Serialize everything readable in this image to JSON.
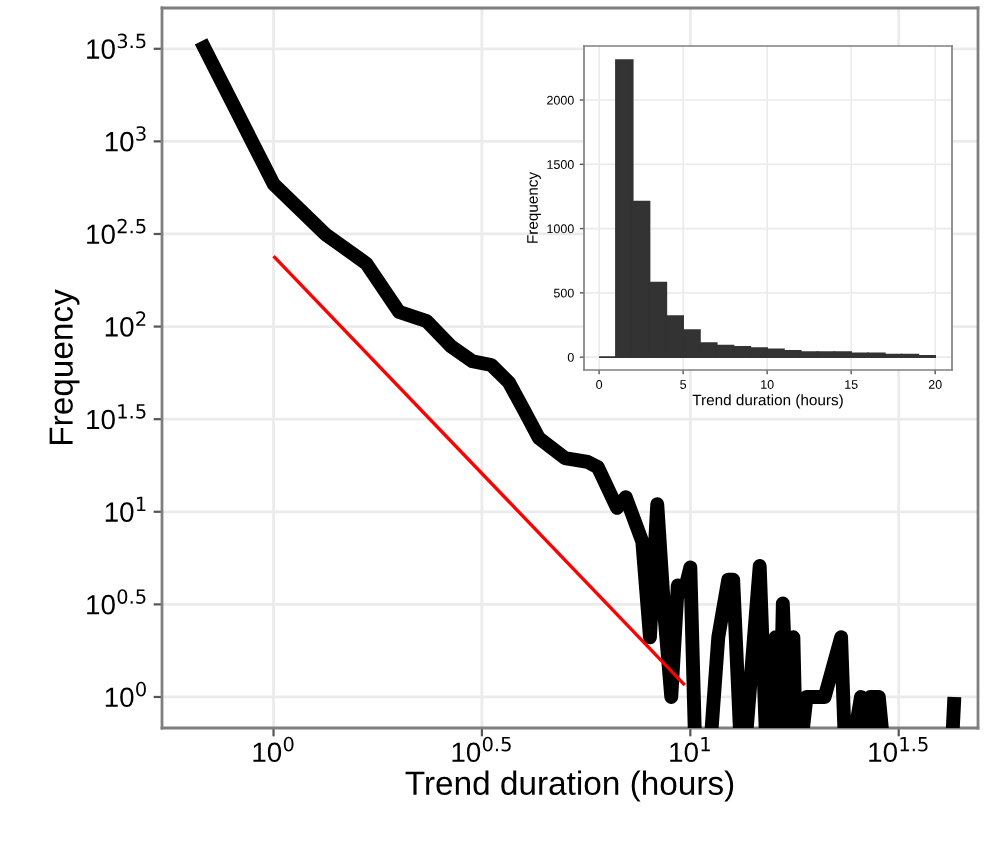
{
  "chart_data": [
    {
      "type": "line",
      "xlabel": "Trend duration (hours)",
      "ylabel": "Frequency",
      "log": "xy",
      "grid": true,
      "xlim": [
        0.54,
        49
      ],
      "xticks": [
        {
          "value": 1,
          "label": "10$^{0}$"
        },
        {
          "value": 3.162,
          "label": "10$^{0.5}$"
        },
        {
          "value": 10,
          "label": "10$^{1}$"
        },
        {
          "value": 31.62,
          "label": "10$^{1.5}$"
        }
      ],
      "ylim": [
        0.68,
        5250
      ],
      "yticks": [
        {
          "value": 1,
          "label": "10$^{0}$"
        },
        {
          "value": 3.162,
          "label": "10$^{0.5}$"
        },
        {
          "value": 10,
          "label": "10$^{1}$"
        },
        {
          "value": 31.62,
          "label": "10$^{1.5}$"
        },
        {
          "value": 100,
          "label": "10$^{2}$"
        },
        {
          "value": 316.2,
          "label": "10$^{2.5}$"
        },
        {
          "value": 1000,
          "label": "10$^{3}$"
        },
        {
          "value": 3162,
          "label": "10$^{3.5}$"
        }
      ],
      "series": [
        {
          "color": "#000000",
          "x": [
            0.67,
            1,
            1.33,
            1.67,
            2,
            2.33,
            2.67,
            3,
            3.33,
            3.67,
            4,
            4.33,
            5,
            5.67,
            6,
            6.67,
            7,
            7.67,
            8,
            8.33,
            8.67,
            9,
            9.33,
            9.67,
            10,
            10.33,
            11,
            11.67,
            12.33,
            12.67,
            13.33,
            14.67,
            15.33,
            16,
            16.33,
            16.67,
            17.33,
            17.67,
            18,
            19,
            21,
            23,
            23.67,
            25.67,
            26.33,
            27,
            27.67,
            28.33,
            29.67,
            42,
            43
          ],
          "values": [
            3470,
            589,
            316,
            219,
            120,
            107,
            78,
            65,
            62,
            50,
            35,
            25,
            19.5,
            18.6,
            17.4,
            10.5,
            12,
            6.9,
            2.1,
            11,
            2.75,
            1,
            4,
            3.7,
            5,
            null,
            null,
            2.1,
            4.3,
            4.3,
            null,
            5.1,
            null,
            2.1,
            null,
            3.2,
            null,
            2.1,
            null,
            1,
            1,
            2.1,
            null,
            1,
            null,
            1,
            1,
            1,
            null,
            null,
            1
          ]
        },
        {
          "color": "#ff0000",
          "x": [
            1,
            9.7
          ],
          "values": [
            240,
            1.16
          ]
        }
      ]
    },
    {
      "type": "histogram",
      "xlabel": "Trend duration (hours)",
      "ylabel": "Frequency",
      "grid": true,
      "color": "#333333",
      "bins": [
        0,
        1,
        2,
        3,
        4,
        5,
        6,
        7,
        8,
        9,
        10,
        11,
        12,
        13,
        14,
        15,
        16,
        17,
        18,
        19,
        20
      ],
      "values": [
        0,
        2310,
        1210,
        580,
        320,
        210,
        110,
        90,
        80,
        70,
        60,
        50,
        40,
        40,
        40,
        30,
        30,
        20,
        20,
        10
      ],
      "xlim": [
        -0.9,
        21
      ],
      "xticks": [
        0,
        5,
        10,
        15,
        20
      ],
      "ylim": [
        -100,
        2420
      ],
      "yticks": [
        0,
        500,
        1000,
        1500,
        2000
      ]
    }
  ]
}
